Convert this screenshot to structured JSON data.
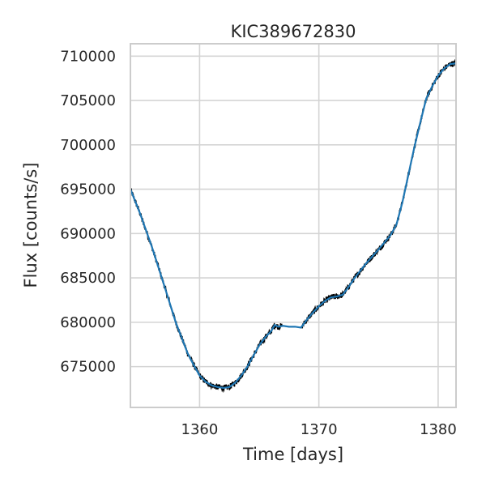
{
  "chart_data": {
    "type": "line",
    "title": "KIC389672830",
    "xlabel": "Time [days]",
    "ylabel": "Flux [counts/s]",
    "xlim": [
      1354.2,
      1381.5
    ],
    "ylim": [
      670400,
      711400
    ],
    "xticks": [
      1360,
      1370,
      1380
    ],
    "xtick_labels": [
      "1360",
      "1370",
      "1380"
    ],
    "yticks": [
      675000,
      680000,
      685000,
      690000,
      695000,
      700000,
      705000,
      710000
    ],
    "ytick_labels": [
      "675000",
      "680000",
      "685000",
      "690000",
      "695000",
      "700000",
      "705000",
      "710000"
    ],
    "grid": true,
    "legend": false,
    "colors": {
      "raw": "#000000",
      "model": "#1f77b4",
      "grid": "#d4d4d4",
      "spine": "#cccccc"
    },
    "series": [
      {
        "x": [
          1354.2,
          1355.0,
          1356.0,
          1357.0,
          1358.0,
          1359.0,
          1359.5,
          1360.0,
          1360.5,
          1361.0,
          1361.5,
          1362.0,
          1362.5,
          1363.0,
          1363.5,
          1364.0,
          1364.5,
          1365.0,
          1365.5,
          1366.0,
          1366.3,
          1366.6,
          1367.0,
          1367.5,
          1368.0,
          1368.5,
          1369.0,
          1369.5,
          1370.0,
          1370.5,
          1371.0,
          1371.5,
          1372.0,
          1372.5,
          1373.0,
          1374.0,
          1375.0,
          1376.0,
          1376.5,
          1377.0,
          1377.5,
          1378.0,
          1378.5,
          1379.0,
          1379.5,
          1380.0,
          1380.5,
          1381.0,
          1381.5
        ],
        "values": [
          695000,
          692300,
          688500,
          684300,
          680000,
          676500,
          675200,
          674000,
          673300,
          672900,
          672700,
          672600,
          672700,
          673200,
          674000,
          675000,
          676200,
          677400,
          678300,
          679000,
          679700,
          679500,
          679600,
          679500,
          679500,
          679400,
          680300,
          681100,
          681800,
          682400,
          682800,
          682900,
          683100,
          684000,
          685000,
          686700,
          688200,
          689800,
          691000,
          693500,
          696600,
          699700,
          702500,
          705200,
          706600,
          707800,
          708600,
          709100,
          709200
        ]
      }
    ]
  }
}
